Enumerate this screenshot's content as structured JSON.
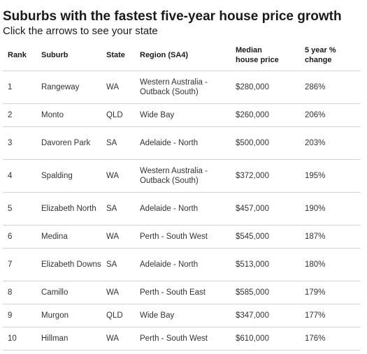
{
  "header": {
    "title": "Suburbs with the fastest five-year house price growth",
    "subtitle": "Click the arrows to see your state"
  },
  "table": {
    "columns": {
      "rank": "Rank",
      "suburb": "Suburb",
      "state": "State",
      "region": "Region (SA4)",
      "price_line1": "Median",
      "price_line2": "house price",
      "change_line1": "5 year %",
      "change_line2": "change"
    },
    "rows": [
      {
        "rank": "1",
        "suburb": "Rangeway",
        "state": "WA",
        "region": "Western Australia - Outback (South)",
        "price": "$280,000",
        "change": "286%"
      },
      {
        "rank": "2",
        "suburb": "Monto",
        "state": "QLD",
        "region": "Wide Bay",
        "price": "$260,000",
        "change": "206%"
      },
      {
        "rank": "3",
        "suburb": "Davoren Park",
        "state": "SA",
        "region": "Adelaide - North",
        "price": "$500,000",
        "change": "203%"
      },
      {
        "rank": "4",
        "suburb": "Spalding",
        "state": "WA",
        "region": "Western Australia - Outback (South)",
        "price": "$372,000",
        "change": "195%"
      },
      {
        "rank": "5",
        "suburb": "Elizabeth North",
        "state": "SA",
        "region": "Adelaide - North",
        "price": "$457,000",
        "change": "190%"
      },
      {
        "rank": "6",
        "suburb": "Medina",
        "state": "WA",
        "region": "Perth - South West",
        "price": "$545,000",
        "change": "187%"
      },
      {
        "rank": "7",
        "suburb": "Elizabeth Downs",
        "state": "SA",
        "region": "Adelaide - North",
        "price": "$513,000",
        "change": "180%"
      },
      {
        "rank": "8",
        "suburb": "Camillo",
        "state": "WA",
        "region": "Perth - South East",
        "price": "$585,000",
        "change": "179%"
      },
      {
        "rank": "9",
        "suburb": "Murgon",
        "state": "QLD",
        "region": "Wide Bay",
        "price": "$347,000",
        "change": "177%"
      },
      {
        "rank": "10",
        "suburb": "Hillman",
        "state": "WA",
        "region": "Perth - South West",
        "price": "$610,000",
        "change": "176%"
      }
    ]
  }
}
